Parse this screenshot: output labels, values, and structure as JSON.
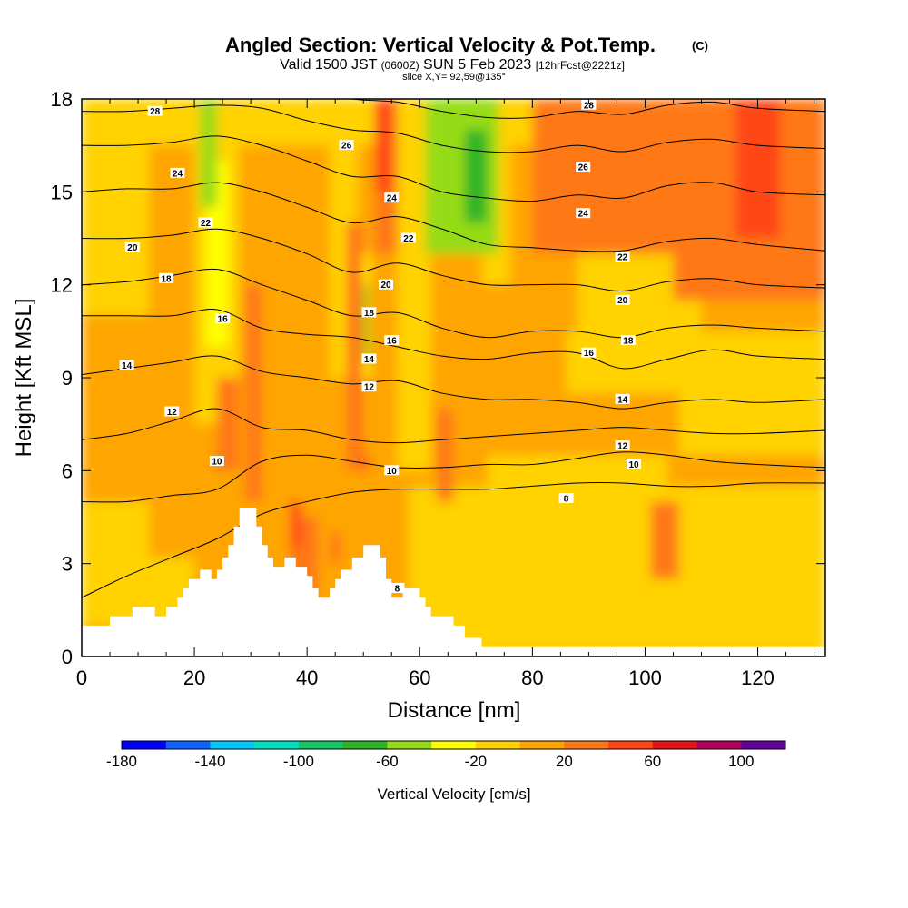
{
  "header": {
    "title": "Angled Section: Vertical Velocity & Pot.Temp.",
    "title_suffix": "(C)",
    "valid_a": "Valid 1500 JST",
    "valid_b": "(0600Z)",
    "valid_c": "SUN 5 Feb 2023",
    "valid_d": "[12hrFcst@2221z]",
    "slice": "slice X,Y= 92,59@135°"
  },
  "chart_data": {
    "type": "heatmap",
    "xlabel": "Distance [nm]",
    "ylabel": "Height [Kft MSL]",
    "xlim": [
      0,
      132
    ],
    "ylim": [
      0,
      18
    ],
    "x_ticks": [
      0,
      20,
      40,
      60,
      80,
      100,
      120
    ],
    "y_ticks": [
      0,
      3,
      6,
      9,
      12,
      15,
      18
    ],
    "colorbar": {
      "label": "Vertical Velocity [cm/s]",
      "tick_labels": [
        "-180",
        "-140",
        "-100",
        "-60",
        "-20",
        "20",
        "60",
        "100"
      ],
      "tick_values": [
        -180,
        -140,
        -100,
        -60,
        -20,
        20,
        60,
        100
      ],
      "range": [
        -180,
        120
      ],
      "step": 20,
      "colors": [
        "#0000ff",
        "#0a64ff",
        "#00c8ff",
        "#00e0c0",
        "#14c864",
        "#2db428",
        "#96dc14",
        "#ffff00",
        "#ffd200",
        "#ffa500",
        "#ff7814",
        "#ff4614",
        "#e61414",
        "#b4005a",
        "#64009b"
      ]
    },
    "terrain": [
      [
        0,
        1.0
      ],
      [
        5,
        1.0
      ],
      [
        5,
        1.3
      ],
      [
        9,
        1.3
      ],
      [
        9,
        1.6
      ],
      [
        13,
        1.6
      ],
      [
        13,
        1.3
      ],
      [
        15,
        1.3
      ],
      [
        15,
        1.6
      ],
      [
        17,
        1.6
      ],
      [
        17,
        1.9
      ],
      [
        18,
        1.9
      ],
      [
        18,
        2.2
      ],
      [
        19,
        2.2
      ],
      [
        19,
        2.5
      ],
      [
        21,
        2.5
      ],
      [
        21,
        2.8
      ],
      [
        23,
        2.8
      ],
      [
        23,
        2.5
      ],
      [
        24,
        2.5
      ],
      [
        24,
        2.8
      ],
      [
        25,
        2.8
      ],
      [
        25,
        3.2
      ],
      [
        26,
        3.2
      ],
      [
        26,
        3.6
      ],
      [
        27,
        3.6
      ],
      [
        27,
        4.2
      ],
      [
        28,
        4.2
      ],
      [
        28,
        4.8
      ],
      [
        31,
        4.8
      ],
      [
        31,
        4.2
      ],
      [
        32,
        4.2
      ],
      [
        32,
        3.6
      ],
      [
        33,
        3.6
      ],
      [
        33,
        3.2
      ],
      [
        34,
        3.2
      ],
      [
        34,
        2.9
      ],
      [
        36,
        2.9
      ],
      [
        36,
        3.2
      ],
      [
        38,
        3.2
      ],
      [
        38,
        2.9
      ],
      [
        40,
        2.9
      ],
      [
        40,
        2.6
      ],
      [
        41,
        2.6
      ],
      [
        41,
        2.2
      ],
      [
        42,
        2.2
      ],
      [
        42,
        1.9
      ],
      [
        44,
        1.9
      ],
      [
        44,
        2.2
      ],
      [
        45,
        2.2
      ],
      [
        45,
        2.5
      ],
      [
        46,
        2.5
      ],
      [
        46,
        2.8
      ],
      [
        48,
        2.8
      ],
      [
        48,
        3.2
      ],
      [
        50,
        3.2
      ],
      [
        50,
        3.6
      ],
      [
        53,
        3.6
      ],
      [
        53,
        3.2
      ],
      [
        54,
        3.2
      ],
      [
        54,
        2.5
      ],
      [
        55,
        2.5
      ],
      [
        55,
        1.9
      ],
      [
        57,
        1.9
      ],
      [
        57,
        2.2
      ],
      [
        60,
        2.2
      ],
      [
        60,
        1.9
      ],
      [
        61,
        1.9
      ],
      [
        61,
        1.6
      ],
      [
        62,
        1.6
      ],
      [
        62,
        1.3
      ],
      [
        66,
        1.3
      ],
      [
        66,
        1.0
      ],
      [
        68,
        1.0
      ],
      [
        68,
        0.6
      ],
      [
        71,
        0.6
      ],
      [
        71,
        0.3
      ],
      [
        132,
        0.3
      ]
    ],
    "velocity_cells": [
      {
        "x": [
          0,
          132
        ],
        "y": [
          0,
          18
        ],
        "v": 10
      },
      {
        "x": [
          0,
          12
        ],
        "y": [
          1.0,
          5.0
        ],
        "v": -10
      },
      {
        "x": [
          5,
          20
        ],
        "y": [
          0.8,
          3.2
        ],
        "v": -10
      },
      {
        "x": [
          58,
          132
        ],
        "y": [
          0,
          5.5
        ],
        "v": -10
      },
      {
        "x": [
          72,
          104
        ],
        "y": [
          5.2,
          6.5
        ],
        "v": -10
      },
      {
        "x": [
          86,
          132
        ],
        "y": [
          8.5,
          10.5
        ],
        "v": -10
      },
      {
        "x": [
          106,
          132
        ],
        "y": [
          6.5,
          8.5
        ],
        "v": -10
      },
      {
        "x": [
          0,
          132
        ],
        "y": [
          16.5,
          18
        ],
        "v": -10
      },
      {
        "x": [
          0,
          12
        ],
        "y": [
          11,
          16.5
        ],
        "v": -10
      },
      {
        "x": [
          88,
          110
        ],
        "y": [
          9,
          14
        ],
        "v": -10
      },
      {
        "x": [
          20,
          28
        ],
        "y": [
          7.5,
          18
        ],
        "v": -10
      },
      {
        "x": [
          44,
          49
        ],
        "y": [
          9,
          18
        ],
        "v": -10
      },
      {
        "x": [
          56,
          62
        ],
        "y": [
          6,
          18
        ],
        "v": -10
      },
      {
        "x": [
          62,
          67
        ],
        "y": [
          13,
          18
        ],
        "v": -10
      },
      {
        "x": [
          71,
          76
        ],
        "y": [
          12,
          18
        ],
        "v": -10
      },
      {
        "x": [
          22,
          26
        ],
        "y": [
          10,
          16
        ],
        "v": -30
      },
      {
        "x": [
          49,
          51
        ],
        "y": [
          9,
          13
        ],
        "v": -30
      },
      {
        "x": [
          61,
          74
        ],
        "y": [
          13,
          18
        ],
        "v": -50
      },
      {
        "x": [
          68,
          72
        ],
        "y": [
          14,
          17
        ],
        "v": -70
      },
      {
        "x": [
          21,
          24
        ],
        "y": [
          14.5,
          18
        ],
        "v": -50
      },
      {
        "x": [
          49.5,
          51
        ],
        "y": [
          9.5,
          12
        ],
        "v": -50
      },
      {
        "x": [
          80,
          132
        ],
        "y": [
          13,
          18
        ],
        "v": 30
      },
      {
        "x": [
          105,
          132
        ],
        "y": [
          11.5,
          16
        ],
        "v": 30
      },
      {
        "x": [
          90,
          132
        ],
        "y": [
          13,
          18
        ],
        "v": 30
      },
      {
        "x": [
          47,
          50
        ],
        "y": [
          6,
          14
        ],
        "v": 30
      },
      {
        "x": [
          52,
          56
        ],
        "y": [
          13,
          18
        ],
        "v": 30
      },
      {
        "x": [
          24,
          28
        ],
        "y": [
          6,
          9
        ],
        "v": 30
      },
      {
        "x": [
          29,
          32
        ],
        "y": [
          5,
          12
        ],
        "v": 30
      },
      {
        "x": [
          37,
          42
        ],
        "y": [
          2,
          4.5
        ],
        "v": 30
      },
      {
        "x": [
          44,
          46
        ],
        "y": [
          3,
          4
        ],
        "v": 30
      },
      {
        "x": [
          63,
          66
        ],
        "y": [
          5,
          8
        ],
        "v": 30
      },
      {
        "x": [
          101,
          106
        ],
        "y": [
          2.5,
          5
        ],
        "v": 30
      },
      {
        "x": [
          52,
          55
        ],
        "y": [
          15,
          18
        ],
        "v": 50
      },
      {
        "x": [
          116,
          124
        ],
        "y": [
          13.5,
          18
        ],
        "v": 50
      },
      {
        "x": [
          37,
          39
        ],
        "y": [
          3.5,
          5
        ],
        "v": 50
      },
      {
        "x": [
          50,
          51
        ],
        "y": [
          6,
          6.5
        ],
        "v": 50
      }
    ],
    "isentropes": [
      {
        "label": "8",
        "y": [
          1.9,
          2.6,
          3.2,
          3.8,
          4.6,
          5.0,
          5.3,
          5.4,
          5.4,
          5.4,
          5.5,
          5.6,
          5.6,
          5.5,
          5.5,
          5.6,
          5.6
        ]
      },
      {
        "label": "10",
        "y": [
          5.0,
          5.0,
          5.2,
          5.4,
          6.3,
          6.5,
          6.3,
          6.1,
          6.1,
          6.2,
          6.2,
          6.4,
          6.6,
          6.5,
          6.3,
          6.2,
          6.1
        ]
      },
      {
        "label": "12",
        "y": [
          7.0,
          7.2,
          7.6,
          8.0,
          7.4,
          7.3,
          7.0,
          6.9,
          7.0,
          7.1,
          7.2,
          7.3,
          7.4,
          7.3,
          7.2,
          7.2,
          7.3
        ]
      },
      {
        "label": "14",
        "y": [
          9.1,
          9.3,
          9.5,
          9.7,
          9.2,
          9.0,
          8.8,
          8.9,
          8.5,
          8.3,
          8.3,
          8.2,
          8.0,
          8.2,
          8.3,
          8.2,
          8.3
        ]
      },
      {
        "label": "16",
        "y": [
          11.0,
          11.0,
          11.0,
          11.2,
          10.6,
          10.4,
          10.3,
          10.0,
          9.7,
          9.6,
          9.8,
          9.8,
          9.3,
          9.6,
          9.9,
          9.7,
          9.6
        ]
      },
      {
        "label": "18",
        "y": [
          12.0,
          12.1,
          12.3,
          12.5,
          12.0,
          11.5,
          11.0,
          11.1,
          10.6,
          10.3,
          10.5,
          10.5,
          10.3,
          10.6,
          10.7,
          10.6,
          10.5
        ]
      },
      {
        "label": "20",
        "y": [
          13.5,
          13.5,
          13.6,
          13.8,
          13.5,
          13.0,
          12.4,
          12.7,
          12.3,
          12.0,
          12.0,
          12.0,
          11.8,
          12.1,
          12.2,
          12.0,
          11.9
        ]
      },
      {
        "label": "22",
        "y": [
          15.0,
          15.1,
          15.1,
          15.3,
          15.0,
          14.5,
          14.0,
          14.2,
          13.8,
          13.3,
          13.2,
          13.1,
          13.1,
          13.4,
          13.5,
          13.3,
          13.1
        ]
      },
      {
        "label": "24",
        "y": [
          16.5,
          16.5,
          16.6,
          16.8,
          16.5,
          16.0,
          15.5,
          15.5,
          15.0,
          14.8,
          14.7,
          14.9,
          14.8,
          15.2,
          15.3,
          15.0,
          14.9
        ]
      },
      {
        "label": "26",
        "y": [
          17.6,
          17.6,
          17.7,
          17.8,
          17.7,
          17.3,
          17.0,
          16.9,
          16.5,
          16.3,
          16.3,
          16.5,
          16.3,
          16.6,
          16.7,
          16.5,
          16.4
        ]
      },
      {
        "label": "28",
        "y": [
          18.5,
          18.5,
          18.6,
          18.7,
          18.6,
          18.3,
          18.0,
          17.9,
          17.6,
          17.4,
          17.4,
          17.6,
          17.5,
          17.8,
          17.9,
          17.7,
          17.6
        ]
      }
    ],
    "isentrope_x": [
      0,
      8,
      16,
      24,
      32,
      40,
      48,
      56,
      64,
      72,
      80,
      88,
      96,
      104,
      112,
      120,
      132
    ],
    "contour_labels": [
      {
        "text": "28",
        "x": 13,
        "y": 17.6
      },
      {
        "text": "26",
        "x": 47,
        "y": 16.5
      },
      {
        "text": "28",
        "x": 90,
        "y": 17.8
      },
      {
        "text": "24",
        "x": 17,
        "y": 15.6
      },
      {
        "text": "26",
        "x": 89,
        "y": 15.8
      },
      {
        "text": "24",
        "x": 55,
        "y": 14.8
      },
      {
        "text": "24",
        "x": 89,
        "y": 14.3
      },
      {
        "text": "22",
        "x": 22,
        "y": 14.0
      },
      {
        "text": "22",
        "x": 58,
        "y": 13.5
      },
      {
        "text": "20",
        "x": 9,
        "y": 13.2
      },
      {
        "text": "22",
        "x": 96,
        "y": 12.9
      },
      {
        "text": "18",
        "x": 15,
        "y": 12.2
      },
      {
        "text": "20",
        "x": 54,
        "y": 12.0
      },
      {
        "text": "20",
        "x": 96,
        "y": 11.5
      },
      {
        "text": "16",
        "x": 25,
        "y": 10.9
      },
      {
        "text": "18",
        "x": 51,
        "y": 11.1
      },
      {
        "text": "16",
        "x": 55,
        "y": 10.2
      },
      {
        "text": "18",
        "x": 97,
        "y": 10.2
      },
      {
        "text": "14",
        "x": 8,
        "y": 9.4
      },
      {
        "text": "16",
        "x": 90,
        "y": 9.8
      },
      {
        "text": "14",
        "x": 51,
        "y": 9.6
      },
      {
        "text": "12",
        "x": 51,
        "y": 8.7
      },
      {
        "text": "12",
        "x": 16,
        "y": 7.9
      },
      {
        "text": "14",
        "x": 96,
        "y": 8.3
      },
      {
        "text": "12",
        "x": 96,
        "y": 6.8
      },
      {
        "text": "10",
        "x": 24,
        "y": 6.3
      },
      {
        "text": "10",
        "x": 55,
        "y": 6.0
      },
      {
        "text": "10",
        "x": 98,
        "y": 6.2
      },
      {
        "text": "8",
        "x": 86,
        "y": 5.1
      },
      {
        "text": "8",
        "x": 56,
        "y": 2.2
      }
    ]
  }
}
